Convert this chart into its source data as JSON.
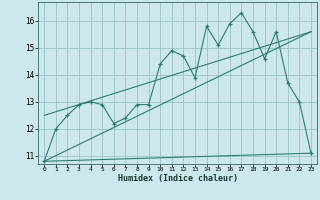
{
  "title": "",
  "xlabel": "Humidex (Indice chaleur)",
  "ylabel": "",
  "bg_color": "#cce8ec",
  "grid_color": "#a0c8cc",
  "line_color": "#2e7d72",
  "xlim": [
    -0.5,
    23.5
  ],
  "ylim": [
    10.7,
    16.7
  ],
  "yticks": [
    11,
    12,
    13,
    14,
    15,
    16
  ],
  "xticks": [
    0,
    1,
    2,
    3,
    4,
    5,
    6,
    7,
    8,
    9,
    10,
    11,
    12,
    13,
    14,
    15,
    16,
    17,
    18,
    19,
    20,
    21,
    22,
    23
  ],
  "series": [
    [
      0,
      10.8
    ],
    [
      1,
      12.0
    ],
    [
      2,
      12.5
    ],
    [
      3,
      12.9
    ],
    [
      4,
      13.0
    ],
    [
      5,
      12.9
    ],
    [
      6,
      12.2
    ],
    [
      7,
      12.4
    ],
    [
      8,
      12.9
    ],
    [
      9,
      12.9
    ],
    [
      10,
      14.4
    ],
    [
      11,
      14.9
    ],
    [
      12,
      14.7
    ],
    [
      13,
      13.9
    ],
    [
      14,
      15.8
    ],
    [
      15,
      15.1
    ],
    [
      16,
      15.9
    ],
    [
      17,
      16.3
    ],
    [
      18,
      15.6
    ],
    [
      19,
      14.6
    ],
    [
      20,
      15.6
    ],
    [
      21,
      13.7
    ],
    [
      22,
      13.0
    ],
    [
      23,
      11.1
    ]
  ],
  "line1": [
    [
      0,
      10.8
    ],
    [
      23,
      15.6
    ]
  ],
  "line2": [
    [
      0,
      10.8
    ],
    [
      23,
      11.1
    ]
  ],
  "line3": [
    [
      0,
      12.5
    ],
    [
      23,
      15.6
    ]
  ]
}
